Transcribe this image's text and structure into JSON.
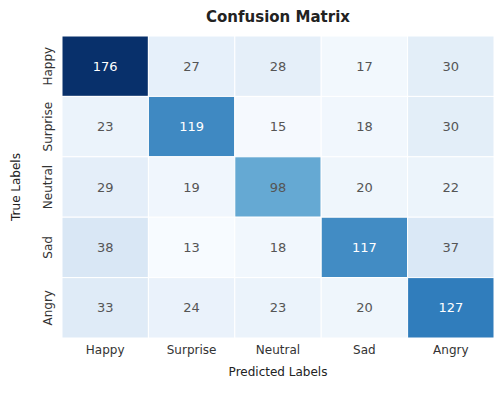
{
  "chart_data": {
    "type": "heatmap",
    "title": "Confusion Matrix",
    "xlabel": "Predicted Labels",
    "ylabel": "True Labels",
    "categories": [
      "Happy",
      "Surprise",
      "Neutral",
      "Sad",
      "Angry"
    ],
    "values": [
      [
        176,
        27,
        28,
        17,
        30
      ],
      [
        23,
        119,
        15,
        18,
        30
      ],
      [
        29,
        19,
        98,
        20,
        22
      ],
      [
        38,
        13,
        18,
        117,
        37
      ],
      [
        33,
        24,
        23,
        20,
        127
      ]
    ],
    "color": "#08306b",
    "data_labels": true
  }
}
